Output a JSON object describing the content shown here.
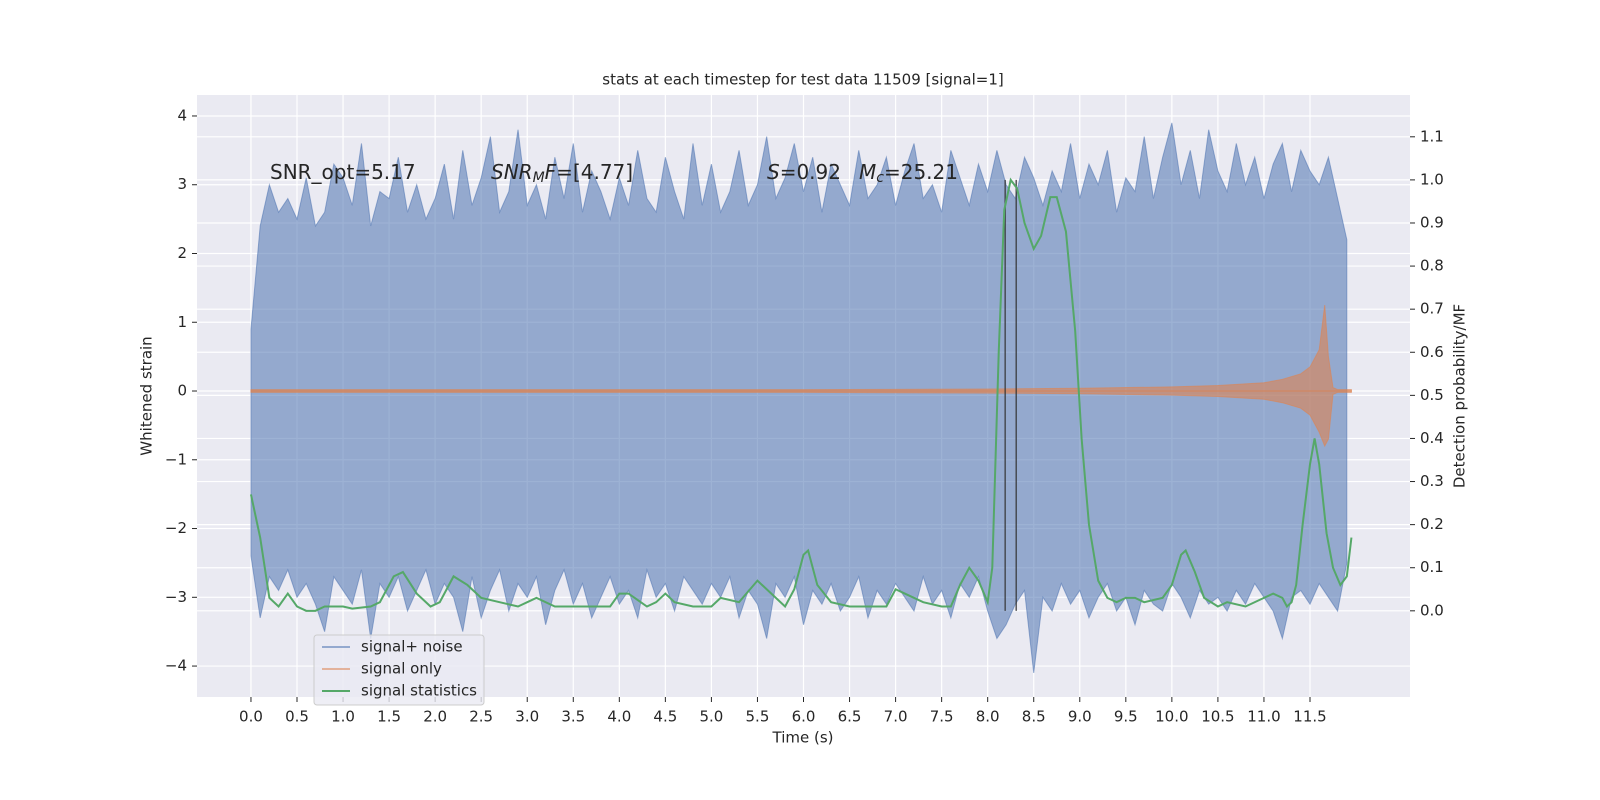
{
  "chart_data": {
    "type": "line",
    "title": "stats at each timestep for test data 11509 [signal=1]",
    "xlabel": "Time (s)",
    "ylabel": "Whitened strain",
    "y2label": "Detection probability/MF",
    "xlim": [
      -0.586,
      12.586
    ],
    "ylim": [
      -4.45,
      4.305
    ],
    "y2lim": [
      -0.2,
      1.197
    ],
    "xticks": [
      {
        "value": 0,
        "label": "0.0"
      },
      0.5,
      {
        "value": 1,
        "label": "1.0"
      },
      1.5,
      {
        "value": 2,
        "label": "2.0"
      },
      2.5,
      {
        "value": 3,
        "label": "3.0"
      },
      3.5,
      {
        "value": 4,
        "label": "4.0"
      },
      4.5,
      {
        "value": 5,
        "label": "5.0"
      },
      5.5,
      {
        "value": 6,
        "label": "6.0"
      },
      6.5,
      {
        "value": 7,
        "label": "7.0"
      },
      7.5,
      {
        "value": 8,
        "label": "8.0"
      },
      8.5,
      {
        "value": 9,
        "label": "9.0"
      },
      9.5,
      {
        "value": 10,
        "label": "10.0"
      },
      10.5,
      {
        "value": 11,
        "label": "11.0"
      },
      11.5
    ],
    "yticks": [
      {
        "value": -4,
        "label": "−4"
      },
      {
        "value": -3,
        "label": "−3"
      },
      {
        "value": -2,
        "label": "−2"
      },
      {
        "value": -1,
        "label": "−1"
      },
      0,
      1,
      2,
      3,
      4
    ],
    "y2ticks": [
      {
        "value": 0,
        "label": "0.0"
      },
      0.1,
      0.2,
      0.3,
      0.4,
      0.5,
      0.6,
      0.7,
      0.8,
      0.9,
      {
        "value": 1,
        "label": "1.0"
      },
      1.1
    ],
    "grid": true,
    "legend_loc": "lower left",
    "series": [
      {
        "name": "signal+ noise",
        "color": "#4c72b0",
        "x": [
          0,
          0.1,
          0.2,
          0.3,
          0.4,
          0.5,
          0.6,
          0.7,
          0.8,
          0.9,
          1,
          1.1,
          1.2,
          1.3,
          1.4,
          1.5,
          1.6,
          1.7,
          1.8,
          1.9,
          2,
          2.1,
          2.2,
          2.3,
          2.4,
          2.5,
          2.6,
          2.7,
          2.8,
          2.9,
          3,
          3.1,
          3.2,
          3.3,
          3.4,
          3.5,
          3.6,
          3.7,
          3.8,
          3.9,
          4,
          4.1,
          4.2,
          4.3,
          4.4,
          4.5,
          4.6,
          4.7,
          4.8,
          4.9,
          5,
          5.1,
          5.2,
          5.3,
          5.4,
          5.5,
          5.6,
          5.7,
          5.8,
          5.9,
          6,
          6.1,
          6.2,
          6.3,
          6.4,
          6.5,
          6.6,
          6.7,
          6.8,
          6.9,
          7,
          7.1,
          7.2,
          7.3,
          7.4,
          7.5,
          7.6,
          7.7,
          7.8,
          7.9,
          8,
          8.1,
          8.2,
          8.3,
          8.4,
          8.5,
          8.6,
          8.7,
          8.8,
          8.9,
          9,
          9.1,
          9.2,
          9.3,
          9.4,
          9.5,
          9.6,
          9.7,
          9.8,
          9.9,
          10,
          10.1,
          10.2,
          10.3,
          10.4,
          10.5,
          10.6,
          10.7,
          10.8,
          10.9,
          11,
          11.1,
          11.2,
          11.3,
          11.4,
          11.5,
          11.6,
          11.7,
          11.8,
          11.9
        ],
        "upper": [
          0.9,
          2.4,
          3.0,
          2.6,
          2.8,
          2.5,
          3.1,
          2.4,
          2.6,
          3.3,
          3.1,
          2.7,
          3.6,
          2.4,
          2.9,
          2.8,
          3.4,
          2.6,
          3.0,
          2.5,
          2.8,
          3.3,
          2.5,
          3.5,
          2.7,
          3.1,
          3.7,
          2.6,
          2.9,
          3.8,
          2.7,
          3.0,
          2.5,
          3.4,
          2.8,
          3.6,
          2.6,
          3.2,
          2.9,
          2.5,
          3.1,
          2.7,
          3.5,
          2.8,
          2.6,
          3.4,
          2.9,
          2.5,
          3.6,
          2.7,
          3.3,
          2.6,
          2.9,
          3.5,
          2.7,
          3.0,
          3.7,
          2.8,
          3.1,
          3.6,
          2.9,
          3.4,
          2.6,
          3.3,
          3.0,
          2.7,
          3.5,
          2.8,
          3.0,
          3.4,
          2.7,
          3.2,
          3.6,
          2.8,
          3.0,
          2.6,
          3.5,
          3.1,
          2.7,
          3.3,
          2.9,
          3.5,
          3.0,
          2.8,
          3.4,
          3.1,
          2.7,
          3.2,
          2.9,
          3.6,
          2.8,
          3.3,
          3.0,
          3.5,
          2.6,
          3.1,
          2.9,
          3.7,
          2.8,
          3.4,
          3.9,
          3.0,
          3.5,
          2.8,
          3.8,
          3.2,
          2.9,
          3.6,
          3.0,
          3.4,
          2.8,
          3.3,
          3.6,
          2.9,
          3.5,
          3.2,
          3.0,
          3.4,
          2.8,
          2.2
        ],
        "lower": [
          -2.4,
          -3.3,
          -2.7,
          -2.9,
          -2.6,
          -3.0,
          -2.8,
          -3.1,
          -3.5,
          -2.7,
          -2.9,
          -3.1,
          -2.6,
          -3.6,
          -2.8,
          -3.0,
          -2.7,
          -3.2,
          -2.9,
          -2.6,
          -3.1,
          -2.8,
          -3.0,
          -3.5,
          -2.7,
          -3.3,
          -2.9,
          -2.6,
          -3.2,
          -2.8,
          -3.0,
          -2.7,
          -3.4,
          -2.9,
          -2.6,
          -3.1,
          -2.8,
          -3.3,
          -3.0,
          -2.7,
          -3.1,
          -2.9,
          -3.3,
          -2.6,
          -3.0,
          -2.8,
          -3.2,
          -2.7,
          -2.9,
          -3.1,
          -2.8,
          -3.0,
          -2.7,
          -3.3,
          -2.9,
          -3.1,
          -3.6,
          -2.8,
          -3.0,
          -2.7,
          -3.4,
          -2.9,
          -3.1,
          -2.8,
          -3.2,
          -3.0,
          -2.7,
          -3.3,
          -2.9,
          -3.1,
          -2.8,
          -3.0,
          -3.2,
          -2.7,
          -3.1,
          -2.9,
          -3.3,
          -2.8,
          -3.0,
          -2.7,
          -3.2,
          -3.6,
          -3.4,
          -3.1,
          -2.9,
          -4.1,
          -3.0,
          -3.2,
          -2.8,
          -3.1,
          -2.9,
          -3.3,
          -3.0,
          -2.8,
          -3.2,
          -3.0,
          -3.4,
          -2.9,
          -3.1,
          -3.2,
          -2.8,
          -3.0,
          -3.3,
          -2.9,
          -3.1,
          -3.0,
          -3.2,
          -2.9,
          -3.1,
          -2.8,
          -3.0,
          -3.2,
          -3.6,
          -3.0,
          -2.9,
          -3.1,
          -2.8,
          -3.0,
          -3.2,
          -2.5
        ]
      },
      {
        "name": "signal only",
        "color": "#dd8452",
        "x": [
          0,
          2,
          4,
          6,
          8,
          9,
          10,
          10.5,
          11,
          11.2,
          11.4,
          11.5,
          11.6,
          11.66,
          11.7,
          11.75,
          11.8,
          11.95
        ],
        "upper": [
          0.02,
          0.02,
          0.02,
          0.02,
          0.03,
          0.04,
          0.06,
          0.08,
          0.12,
          0.17,
          0.25,
          0.35,
          0.6,
          1.25,
          0.5,
          0.05,
          0.02,
          0.02
        ],
        "lower": [
          -0.02,
          -0.02,
          -0.02,
          -0.02,
          -0.03,
          -0.04,
          -0.06,
          -0.08,
          -0.12,
          -0.17,
          -0.25,
          -0.35,
          -0.6,
          -0.8,
          -0.7,
          -0.05,
          -0.02,
          -0.02
        ]
      },
      {
        "name": "signal statistics",
        "color": "#55a868",
        "axis": "y2",
        "x": [
          0,
          0.1,
          0.2,
          0.3,
          0.4,
          0.5,
          0.6,
          0.7,
          0.8,
          1.0,
          1.1,
          1.3,
          1.4,
          1.55,
          1.65,
          1.8,
          1.95,
          2.05,
          2.2,
          2.35,
          2.5,
          2.7,
          2.9,
          3.0,
          3.1,
          3.3,
          3.5,
          3.7,
          3.9,
          4.0,
          4.1,
          4.3,
          4.4,
          4.5,
          4.6,
          4.8,
          5.0,
          5.1,
          5.3,
          5.5,
          5.6,
          5.8,
          5.9,
          6.0,
          6.05,
          6.15,
          6.3,
          6.5,
          6.7,
          6.9,
          7.0,
          7.1,
          7.3,
          7.5,
          7.6,
          7.7,
          7.8,
          7.9,
          8.0,
          8.05,
          8.12,
          8.18,
          8.25,
          8.32,
          8.4,
          8.5,
          8.58,
          8.68,
          8.75,
          8.85,
          8.95,
          9.02,
          9.1,
          9.2,
          9.3,
          9.4,
          9.5,
          9.6,
          9.7,
          9.9,
          10.0,
          10.1,
          10.15,
          10.25,
          10.35,
          10.5,
          10.6,
          10.8,
          11.0,
          11.1,
          11.2,
          11.25,
          11.3,
          11.35,
          11.42,
          11.5,
          11.55,
          11.6,
          11.68,
          11.75,
          11.83,
          11.9,
          11.95
        ],
        "values": [
          0.27,
          0.17,
          0.03,
          0.01,
          0.04,
          0.01,
          0.0,
          0.0,
          0.01,
          0.01,
          0.005,
          0.01,
          0.02,
          0.08,
          0.09,
          0.04,
          0.01,
          0.02,
          0.08,
          0.06,
          0.03,
          0.02,
          0.01,
          0.02,
          0.03,
          0.01,
          0.01,
          0.01,
          0.01,
          0.04,
          0.04,
          0.01,
          0.02,
          0.04,
          0.02,
          0.01,
          0.01,
          0.03,
          0.02,
          0.07,
          0.05,
          0.01,
          0.05,
          0.13,
          0.14,
          0.06,
          0.02,
          0.01,
          0.01,
          0.01,
          0.05,
          0.04,
          0.02,
          0.01,
          0.01,
          0.06,
          0.1,
          0.07,
          0.02,
          0.1,
          0.6,
          0.93,
          1.0,
          0.98,
          0.9,
          0.84,
          0.87,
          0.96,
          0.96,
          0.88,
          0.65,
          0.4,
          0.2,
          0.07,
          0.03,
          0.02,
          0.03,
          0.03,
          0.02,
          0.03,
          0.06,
          0.13,
          0.14,
          0.09,
          0.03,
          0.01,
          0.02,
          0.01,
          0.03,
          0.04,
          0.03,
          0.01,
          0.02,
          0.06,
          0.2,
          0.34,
          0.4,
          0.34,
          0.18,
          0.1,
          0.06,
          0.08,
          0.17
        ]
      }
    ],
    "vlines": {
      "x": [
        8.19,
        8.31
      ],
      "ymin": 0,
      "ymax": 1,
      "axis": "y2",
      "color": "#333333"
    },
    "annotations": [
      {
        "segments": [
          {
            "text": "SNR_opt=5.17"
          }
        ]
      },
      {
        "segments": [
          {
            "text": "SNR",
            "style": "italic"
          },
          {
            "text": "M",
            "style": "sub"
          },
          {
            "text": "F",
            "style": "italic"
          },
          {
            "text": "=[4.77]"
          }
        ]
      },
      {
        "segments": [
          {
            "text": "S",
            "style": "italic"
          },
          {
            "text": "=0.92"
          }
        ]
      },
      {
        "segments": [
          {
            "text": "M",
            "style": "italic"
          },
          {
            "text": "c",
            "style": "sub"
          },
          {
            "text": "=25.21"
          }
        ]
      }
    ]
  }
}
